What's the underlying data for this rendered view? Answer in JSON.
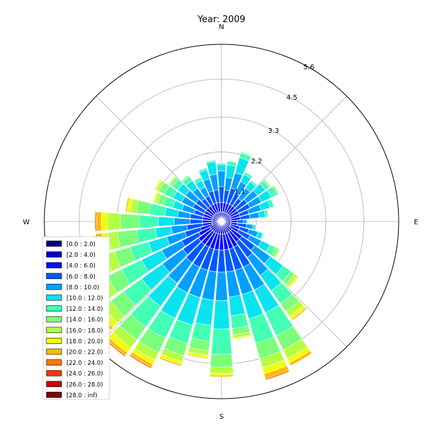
{
  "chart_data": {
    "type": "windrose",
    "title": "Year: 2009",
    "directions": [
      "N",
      "E",
      "S",
      "W"
    ],
    "radial_ticks": [
      "1.1",
      "2.2",
      "3.3",
      "4.5",
      "5.6"
    ],
    "radial_values": [
      1.1,
      2.2,
      3.3,
      4.5,
      5.6
    ],
    "rmax": 5.6,
    "sector_count": 36,
    "grid": true,
    "legend_position": "lower-left",
    "bins": [
      {
        "label": "[0.0 : 2.0)",
        "color": "#000080"
      },
      {
        "label": "[2.0 : 4.0)",
        "color": "#0000c4"
      },
      {
        "label": "[4.0 : 6.0)",
        "color": "#0010ff"
      },
      {
        "label": "[6.0 : 8.0)",
        "color": "#0058ff"
      },
      {
        "label": "[8.0 : 10.0)",
        "color": "#00a0ff"
      },
      {
        "label": "[10.0 : 12.0)",
        "color": "#0ae4ee"
      },
      {
        "label": "[12.0 : 14.0)",
        "color": "#42ffb4"
      },
      {
        "label": "[14.0 : 16.0)",
        "color": "#7bff7b"
      },
      {
        "label": "[16.0 : 18.0)",
        "color": "#b4ff42"
      },
      {
        "label": "[18.0 : 20.0)",
        "color": "#eeff0a"
      },
      {
        "label": "[20.0 : 22.0)",
        "color": "#ffb900"
      },
      {
        "label": "[22.0 : 24.0)",
        "color": "#ff7700"
      },
      {
        "label": "[24.0 : 26.0)",
        "color": "#ff3500"
      },
      {
        "label": "[26.0 : 28.0)",
        "color": "#d00000"
      },
      {
        "label": "[28.0 : inf)",
        "color": "#800000"
      }
    ],
    "sectors": [
      {
        "dir": 0,
        "values": [
          0.1,
          0.2,
          0.3,
          0.5,
          0.5,
          0.2,
          0.04,
          0.0,
          0.0,
          0.0,
          0.0,
          0.0,
          0.0,
          0.0,
          0.0
        ]
      },
      {
        "dir": 10,
        "values": [
          0.1,
          0.2,
          0.3,
          0.4,
          0.4,
          0.4,
          0.12,
          0.0,
          0.0,
          0.0,
          0.0,
          0.0,
          0.0,
          0.0,
          0.0
        ]
      },
      {
        "dir": 20,
        "values": [
          0.1,
          0.2,
          0.3,
          0.5,
          0.5,
          0.5,
          0.15,
          0.04,
          0.0,
          0.0,
          0.0,
          0.0,
          0.0,
          0.0,
          0.0
        ]
      },
      {
        "dir": 30,
        "values": [
          0.1,
          0.2,
          0.3,
          0.4,
          0.4,
          0.25,
          0.08,
          0.0,
          0.0,
          0.0,
          0.0,
          0.0,
          0.0,
          0.0,
          0.0
        ]
      },
      {
        "dir": 40,
        "values": [
          0.1,
          0.2,
          0.3,
          0.3,
          0.4,
          0.25,
          0.06,
          0.0,
          0.0,
          0.0,
          0.0,
          0.0,
          0.0,
          0.0,
          0.0
        ]
      },
      {
        "dir": 50,
        "values": [
          0.1,
          0.2,
          0.3,
          0.4,
          0.4,
          0.3,
          0.15,
          0.05,
          0.0,
          0.0,
          0.0,
          0.0,
          0.0,
          0.0,
          0.0
        ]
      },
      {
        "dir": 60,
        "values": [
          0.1,
          0.2,
          0.3,
          0.4,
          0.4,
          0.35,
          0.2,
          0.06,
          0.0,
          0.0,
          0.0,
          0.0,
          0.0,
          0.0,
          0.0
        ]
      },
      {
        "dir": 70,
        "values": [
          0.1,
          0.2,
          0.3,
          0.3,
          0.4,
          0.3,
          0.12,
          0.0,
          0.0,
          0.0,
          0.0,
          0.0,
          0.0,
          0.0,
          0.0
        ]
      },
      {
        "dir": 80,
        "values": [
          0.1,
          0.2,
          0.3,
          0.3,
          0.3,
          0.2,
          0.08,
          0.0,
          0.0,
          0.0,
          0.0,
          0.0,
          0.0,
          0.0,
          0.0
        ]
      },
      {
        "dir": 90,
        "values": [
          0.1,
          0.2,
          0.2,
          0.2,
          0.1,
          0.03,
          0.0,
          0.0,
          0.0,
          0.0,
          0.0,
          0.0,
          0.0,
          0.0,
          0.0
        ]
      },
      {
        "dir": 100,
        "values": [
          0.1,
          0.2,
          0.2,
          0.3,
          0.2,
          0.08,
          0.0,
          0.0,
          0.0,
          0.0,
          0.0,
          0.0,
          0.0,
          0.0,
          0.0
        ]
      },
      {
        "dir": 110,
        "values": [
          0.1,
          0.2,
          0.3,
          0.3,
          0.3,
          0.15,
          0.04,
          0.0,
          0.0,
          0.0,
          0.0,
          0.0,
          0.0,
          0.0,
          0.0
        ]
      },
      {
        "dir": 120,
        "values": [
          0.1,
          0.2,
          0.3,
          0.4,
          0.4,
          0.3,
          0.2,
          0.1,
          0.05,
          0.0,
          0.0,
          0.0,
          0.0,
          0.0,
          0.0
        ]
      },
      {
        "dir": 130,
        "values": [
          0.1,
          0.3,
          0.4,
          0.5,
          0.6,
          0.5,
          0.3,
          0.15,
          0.1,
          0.05,
          0.0,
          0.0,
          0.0,
          0.0,
          0.0
        ]
      },
      {
        "dir": 140,
        "values": [
          0.1,
          0.3,
          0.4,
          0.6,
          0.7,
          0.6,
          0.5,
          0.3,
          0.2,
          0.1,
          0.05,
          0.0,
          0.0,
          0.0,
          0.0
        ]
      },
      {
        "dir": 150,
        "values": [
          0.1,
          0.3,
          0.5,
          0.7,
          0.8,
          0.8,
          0.8,
          0.5,
          0.3,
          0.15,
          0.1,
          0.0,
          0.0,
          0.0,
          0.0
        ]
      },
      {
        "dir": 160,
        "values": [
          0.1,
          0.3,
          0.5,
          0.7,
          0.8,
          0.8,
          0.8,
          0.5,
          0.3,
          0.2,
          0.15,
          0.05,
          0.0,
          0.0,
          0.0
        ]
      },
      {
        "dir": 170,
        "values": [
          0.1,
          0.3,
          0.5,
          0.7,
          0.8,
          0.6,
          0.4,
          0.2,
          0.1,
          0.04,
          0.0,
          0.0,
          0.0,
          0.0,
          0.0
        ]
      },
      {
        "dir": 180,
        "values": [
          0.1,
          0.3,
          0.5,
          0.7,
          0.9,
          0.9,
          0.8,
          0.4,
          0.2,
          0.06,
          0.05,
          0.0,
          0.0,
          0.0,
          0.0
        ]
      },
      {
        "dir": 190,
        "values": [
          0.1,
          0.3,
          0.5,
          0.7,
          0.9,
          0.8,
          0.5,
          0.3,
          0.15,
          0.08,
          0.03,
          0.0,
          0.0,
          0.0,
          0.0
        ]
      },
      {
        "dir": 200,
        "values": [
          0.1,
          0.3,
          0.5,
          0.7,
          0.9,
          0.9,
          0.6,
          0.4,
          0.2,
          0.1,
          0.05,
          0.0,
          0.0,
          0.0,
          0.0
        ]
      },
      {
        "dir": 210,
        "values": [
          0.1,
          0.3,
          0.5,
          0.7,
          0.9,
          0.9,
          0.7,
          0.5,
          0.25,
          0.15,
          0.1,
          0.05,
          0.0,
          0.0,
          0.0
        ]
      },
      {
        "dir": 220,
        "values": [
          0.1,
          0.3,
          0.5,
          0.7,
          0.8,
          0.9,
          0.8,
          0.5,
          0.3,
          0.2,
          0.1,
          0.05,
          0.0,
          0.0,
          0.0
        ]
      },
      {
        "dir": 230,
        "values": [
          0.1,
          0.3,
          0.5,
          0.6,
          0.8,
          0.8,
          0.7,
          0.5,
          0.3,
          0.2,
          0.1,
          0.0,
          0.0,
          0.0,
          0.0
        ]
      },
      {
        "dir": 240,
        "values": [
          0.1,
          0.3,
          0.4,
          0.6,
          0.7,
          0.7,
          0.7,
          0.5,
          0.3,
          0.15,
          0.1,
          0.0,
          0.0,
          0.0,
          0.0
        ]
      },
      {
        "dir": 250,
        "values": [
          0.1,
          0.2,
          0.4,
          0.5,
          0.6,
          0.6,
          0.6,
          0.5,
          0.3,
          0.1,
          0.05,
          0.0,
          0.0,
          0.0,
          0.0
        ]
      },
      {
        "dir": 260,
        "values": [
          0.1,
          0.2,
          0.3,
          0.5,
          0.5,
          0.5,
          0.6,
          0.6,
          0.3,
          0.2,
          0.15,
          0.05,
          0.0,
          0.0,
          0.0
        ]
      },
      {
        "dir": 270,
        "values": [
          0.1,
          0.2,
          0.3,
          0.4,
          0.5,
          0.5,
          0.6,
          0.6,
          0.4,
          0.2,
          0.15,
          0.05,
          0.0,
          0.0,
          0.0
        ]
      },
      {
        "dir": 280,
        "values": [
          0.1,
          0.2,
          0.3,
          0.4,
          0.4,
          0.4,
          0.5,
          0.4,
          0.2,
          0.1,
          0.05,
          0.0,
          0.0,
          0.0,
          0.0
        ]
      },
      {
        "dir": 290,
        "values": [
          0.1,
          0.2,
          0.3,
          0.3,
          0.4,
          0.3,
          0.3,
          0.2,
          0.1,
          0.05,
          0.0,
          0.0,
          0.0,
          0.0,
          0.0
        ]
      },
      {
        "dir": 300,
        "values": [
          0.1,
          0.2,
          0.3,
          0.4,
          0.4,
          0.3,
          0.3,
          0.2,
          0.1,
          0.05,
          0.0,
          0.0,
          0.0,
          0.0,
          0.0
        ]
      },
      {
        "dir": 310,
        "values": [
          0.1,
          0.2,
          0.3,
          0.4,
          0.4,
          0.3,
          0.2,
          0.1,
          0.05,
          0.0,
          0.0,
          0.0,
          0.0,
          0.0,
          0.0
        ]
      },
      {
        "dir": 320,
        "values": [
          0.1,
          0.2,
          0.3,
          0.3,
          0.4,
          0.3,
          0.15,
          0.05,
          0.0,
          0.0,
          0.0,
          0.0,
          0.0,
          0.0,
          0.0
        ]
      },
      {
        "dir": 330,
        "values": [
          0.1,
          0.2,
          0.3,
          0.3,
          0.3,
          0.25,
          0.1,
          0.0,
          0.0,
          0.0,
          0.0,
          0.0,
          0.0,
          0.0,
          0.0
        ]
      },
      {
        "dir": 340,
        "values": [
          0.1,
          0.2,
          0.3,
          0.4,
          0.4,
          0.3,
          0.06,
          0.0,
          0.0,
          0.0,
          0.0,
          0.0,
          0.0,
          0.0,
          0.0
        ]
      },
      {
        "dir": 350,
        "values": [
          0.1,
          0.2,
          0.3,
          0.4,
          0.5,
          0.4,
          0.05,
          0.0,
          0.0,
          0.0,
          0.0,
          0.0,
          0.0,
          0.0,
          0.0
        ]
      }
    ]
  }
}
